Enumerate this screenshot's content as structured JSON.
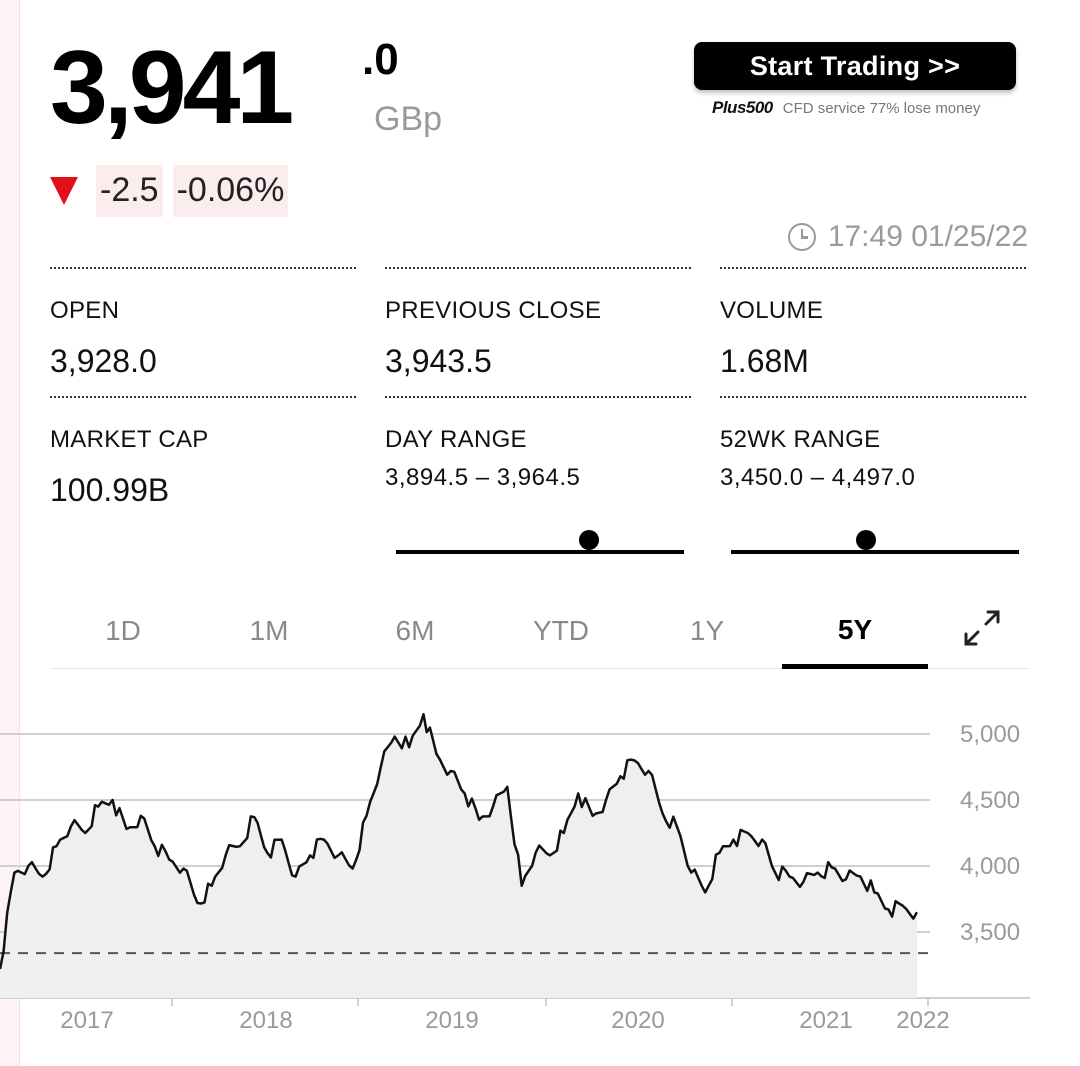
{
  "quote": {
    "price_int": "3,941",
    "price_dec": ".0",
    "currency": "GBp",
    "change": "-2.5",
    "change_pct": "-0.06%",
    "timestamp": "17:49 01/25/22",
    "direction_color": "#e3101b"
  },
  "promo": {
    "button_label": "Start Trading  >>",
    "brand": "Plus500",
    "disclaimer": "CFD service 77% lose money"
  },
  "stats": {
    "open": {
      "label": "OPEN",
      "value": "3,928.0"
    },
    "prev_close": {
      "label": "PREVIOUS CLOSE",
      "value": "3,943.5"
    },
    "volume": {
      "label": "VOLUME",
      "value": "1.68M"
    },
    "market_cap": {
      "label": "MARKET CAP",
      "value": "100.99B"
    },
    "day_range": {
      "label": "DAY RANGE",
      "value": "3,894.5 – 3,964.5",
      "position": 0.67
    },
    "wk52_range": {
      "label": "52WK RANGE",
      "value": "3,450.0 – 4,497.0",
      "position": 0.47
    }
  },
  "tabs": [
    {
      "label": "1D",
      "active": false
    },
    {
      "label": "1M",
      "active": false
    },
    {
      "label": "6M",
      "active": false
    },
    {
      "label": "YTD",
      "active": false
    },
    {
      "label": "1Y",
      "active": false
    },
    {
      "label": "5Y",
      "active": true
    }
  ],
  "icons": {
    "expand": "expand-icon",
    "clock": "clock-icon",
    "direction": "down-arrow-icon"
  },
  "chart_data": {
    "type": "area",
    "x_labels": [
      "2017",
      "2018",
      "2019",
      "2020",
      "2021",
      "2022"
    ],
    "y_ticks": [
      3500,
      4000,
      4500,
      5000
    ],
    "y_tick_labels": [
      "3,500",
      "4,000",
      "4,500",
      "5,000"
    ],
    "ylim": [
      3000,
      5200
    ],
    "grid": true,
    "reference_line": 3340,
    "x": [
      "2016-08",
      "2016-09",
      "2016-10",
      "2016-11",
      "2016-12",
      "2017-01",
      "2017-02",
      "2017-03",
      "2017-04",
      "2017-05",
      "2017-06",
      "2017-07",
      "2017-08",
      "2017-09",
      "2017-10",
      "2017-11",
      "2017-12",
      "2018-01",
      "2018-02",
      "2018-03",
      "2018-04",
      "2018-05",
      "2018-06",
      "2018-07",
      "2018-08",
      "2018-09",
      "2018-10",
      "2018-11",
      "2018-12",
      "2019-01",
      "2019-02",
      "2019-03",
      "2019-04",
      "2019-05",
      "2019-06",
      "2019-07",
      "2019-08",
      "2019-09",
      "2019-10",
      "2019-11",
      "2019-12",
      "2020-01",
      "2020-02",
      "2020-03",
      "2020-04",
      "2020-05",
      "2020-06",
      "2020-07",
      "2020-08",
      "2020-09",
      "2020-10",
      "2020-11",
      "2020-12",
      "2021-01",
      "2021-02",
      "2021-03",
      "2021-04",
      "2021-05",
      "2021-06",
      "2021-07",
      "2021-08",
      "2021-09",
      "2021-10",
      "2021-11",
      "2021-12",
      "2022-01"
    ],
    "values": [
      3220,
      3950,
      4000,
      3920,
      4150,
      4300,
      4250,
      4450,
      4500,
      4280,
      4380,
      4150,
      4050,
      3980,
      3720,
      3850,
      4080,
      4150,
      4370,
      4100,
      4200,
      3920,
      4080,
      4200,
      4080,
      3980,
      4380,
      4750,
      4980,
      4900,
      5150,
      4850,
      4720,
      4550,
      4350,
      4450,
      4600,
      3850,
      4100,
      4080,
      4250,
      4550,
      4380,
      4500,
      4680,
      4800,
      4720,
      4400,
      4300,
      3950,
      3800,
      4100,
      4200,
      4250,
      4200,
      3950,
      3920,
      3880,
      3950,
      3990,
      3900,
      3920,
      3800,
      3670,
      3700,
      3650
    ]
  }
}
